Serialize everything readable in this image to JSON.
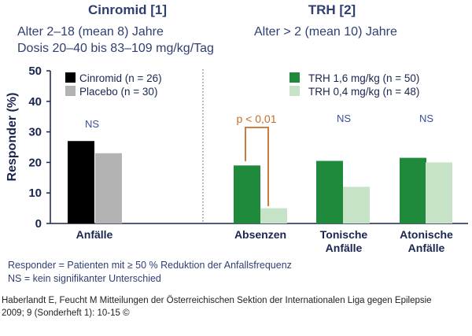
{
  "header": {
    "left_title": "Cinromid [1]",
    "left_line1": "Alter 2–18 (mean 8) Jahre",
    "left_line2": "Dosis 20–40 bis 83–109 mg/kg/Tag",
    "right_title": "TRH [2]",
    "right_line1": "Alter > 2 (mean 10) Jahre"
  },
  "chart_data": {
    "type": "bar",
    "ylabel": "Responder (%)",
    "ylim": [
      0,
      50
    ],
    "yticks": [
      0,
      10,
      20,
      30,
      40,
      50
    ],
    "grid": false,
    "legend_left": "top-left",
    "legend_right": "top-right",
    "series": [
      {
        "name": "Cinromid (n = 26)",
        "color": "#000000",
        "values": [
          27,
          null,
          null,
          null
        ]
      },
      {
        "name": "Placebo (n = 30)",
        "color": "#b3b3b3",
        "values": [
          23,
          null,
          null,
          null
        ]
      },
      {
        "name": "TRH 1,6 mg/kg (n = 50)",
        "color": "#1f8a3b",
        "values": [
          null,
          19,
          20.5,
          21.5
        ]
      },
      {
        "name": "TRH 0,4 mg/kg (n = 48)",
        "color": "#c6e3c7",
        "values": [
          null,
          5,
          12,
          20
        ]
      }
    ],
    "categories": [
      "Anfälle",
      "Absenzen",
      "Tonische Anfälle",
      "Atonische Anfälle"
    ],
    "annotations": [
      "NS",
      "p < 0,01",
      "NS",
      "NS"
    ]
  },
  "footnotes": {
    "line1": "Responder = Patienten mit ≥ 50 % Reduktion der Anfallsfrequenz",
    "line2": "NS = kein signifikanter Unterschied"
  },
  "source": {
    "line1": "Haberlandt E, Feucht M Mitteilungen der Österreichischen Sektion der Internationalen Liga gegen Epilepsie",
    "line2": "2009; 9 (Sonderheft 1): 10-15 ©"
  },
  "colors": {
    "text": "#2f3f73",
    "axis": "#1a2550",
    "bracket": "#c76e2a",
    "ns_text": "#3a4f9a"
  }
}
